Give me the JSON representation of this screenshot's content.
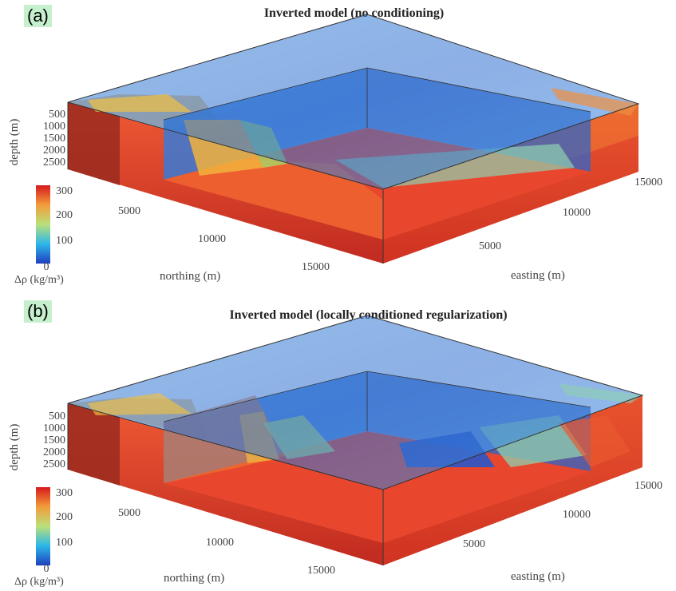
{
  "panels": [
    {
      "tag": "(a)",
      "title": "Inverted model (no conditioning)",
      "depth_label": "depth (m)",
      "depth_ticks": [
        "500",
        "1000",
        "1500",
        "2000",
        "2500"
      ],
      "northing_label": "northing (m)",
      "northing_ticks": [
        "5000",
        "10000",
        "15000"
      ],
      "easting_label": "easting (m)",
      "easting_ticks": [
        "5000",
        "10000",
        "15000"
      ],
      "colorbar_ticks": [
        "300",
        "200",
        "100",
        "0"
      ],
      "colorbar_label": "Δρ (kg/m³)"
    },
    {
      "tag": "(b)",
      "title": "Inverted model (locally conditioned regularization)",
      "depth_label": "depth (m)",
      "depth_ticks": [
        "500",
        "1000",
        "1500",
        "2000",
        "2500"
      ],
      "northing_label": "northing (m)",
      "northing_ticks": [
        "5000",
        "10000",
        "15000"
      ],
      "easting_label": "easting (m)",
      "easting_ticks": [
        "5000",
        "10000",
        "15000"
      ],
      "colorbar_ticks": [
        "300",
        "200",
        "100",
        "0"
      ],
      "colorbar_label": "Δρ (kg/m³)"
    }
  ],
  "colors": {
    "high": "#e8382a",
    "mid_high": "#f3a23a",
    "mid": "#b5d86a",
    "mid_low": "#3aa8e0",
    "low": "#2a55c8"
  }
}
